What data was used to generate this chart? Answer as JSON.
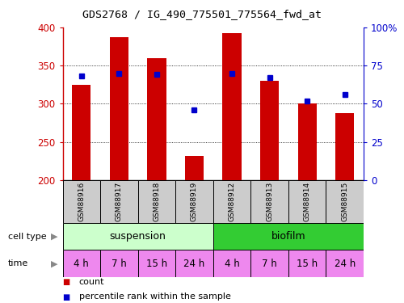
{
  "title": "GDS2768 / IG_490_775501_775564_fwd_at",
  "samples": [
    "GSM88916",
    "GSM88917",
    "GSM88918",
    "GSM88919",
    "GSM88912",
    "GSM88913",
    "GSM88914",
    "GSM88915"
  ],
  "counts": [
    325,
    387,
    360,
    232,
    392,
    330,
    300,
    288
  ],
  "percentile_ranks": [
    68,
    70,
    69,
    46,
    70,
    67,
    52,
    56
  ],
  "ymin": 200,
  "ymax": 400,
  "yticks": [
    200,
    250,
    300,
    350,
    400
  ],
  "right_yticks": [
    0,
    25,
    50,
    75,
    100
  ],
  "right_ylabels": [
    "0",
    "25",
    "50",
    "75",
    "100%"
  ],
  "bar_color": "#cc0000",
  "dot_color": "#0000cc",
  "cell_type_colors": [
    "#ccffcc",
    "#33cc33"
  ],
  "time_bg": "#ee88ee",
  "gsm_bg": "#cccccc",
  "label_color_red": "#cc0000",
  "label_color_blue": "#0000cc",
  "time_labels": [
    "4 h",
    "7 h",
    "15 h",
    "24 h",
    "4 h",
    "7 h",
    "15 h",
    "24 h"
  ]
}
